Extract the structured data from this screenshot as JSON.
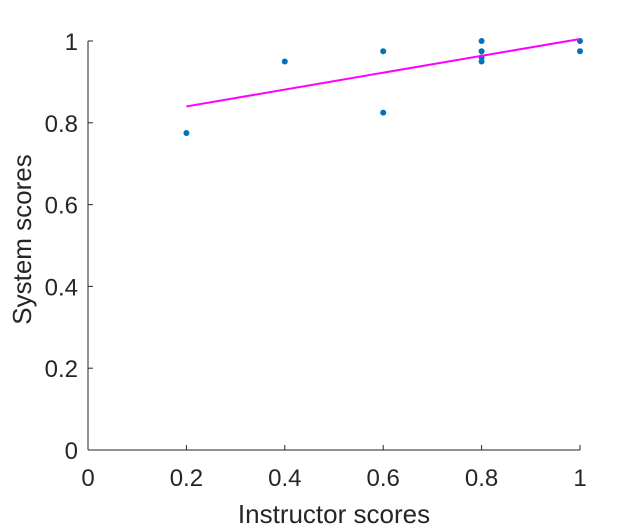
{
  "chart_data": {
    "type": "scatter",
    "xlabel": "Instructor scores",
    "ylabel": "System scores",
    "xlim": [
      0,
      1
    ],
    "ylim": [
      0,
      1
    ],
    "xticks": [
      0,
      0.2,
      0.4,
      0.6,
      0.8,
      1
    ],
    "yticks": [
      0,
      0.2,
      0.4,
      0.6,
      0.8,
      1
    ],
    "xtick_labels": [
      "0",
      "0.2",
      "0.4",
      "0.6",
      "0.8",
      "1"
    ],
    "ytick_labels": [
      "0",
      "0.2",
      "0.4",
      "0.6",
      "0.8",
      "1"
    ],
    "grid": false,
    "series": [
      {
        "type": "scatter",
        "color": "#0072bd",
        "points": [
          {
            "x": 0.2,
            "y": 0.775
          },
          {
            "x": 0.4,
            "y": 0.95
          },
          {
            "x": 0.6,
            "y": 0.975
          },
          {
            "x": 0.6,
            "y": 0.825
          },
          {
            "x": 0.8,
            "y": 1.0
          },
          {
            "x": 0.8,
            "y": 0.975
          },
          {
            "x": 0.8,
            "y": 0.96
          },
          {
            "x": 0.8,
            "y": 0.95
          },
          {
            "x": 1.0,
            "y": 1.0
          },
          {
            "x": 1.0,
            "y": 0.975
          }
        ]
      },
      {
        "type": "line",
        "color": "#ff00ff",
        "points": [
          {
            "x": 0.2,
            "y": 0.84
          },
          {
            "x": 1.0,
            "y": 1.005
          }
        ]
      }
    ]
  }
}
